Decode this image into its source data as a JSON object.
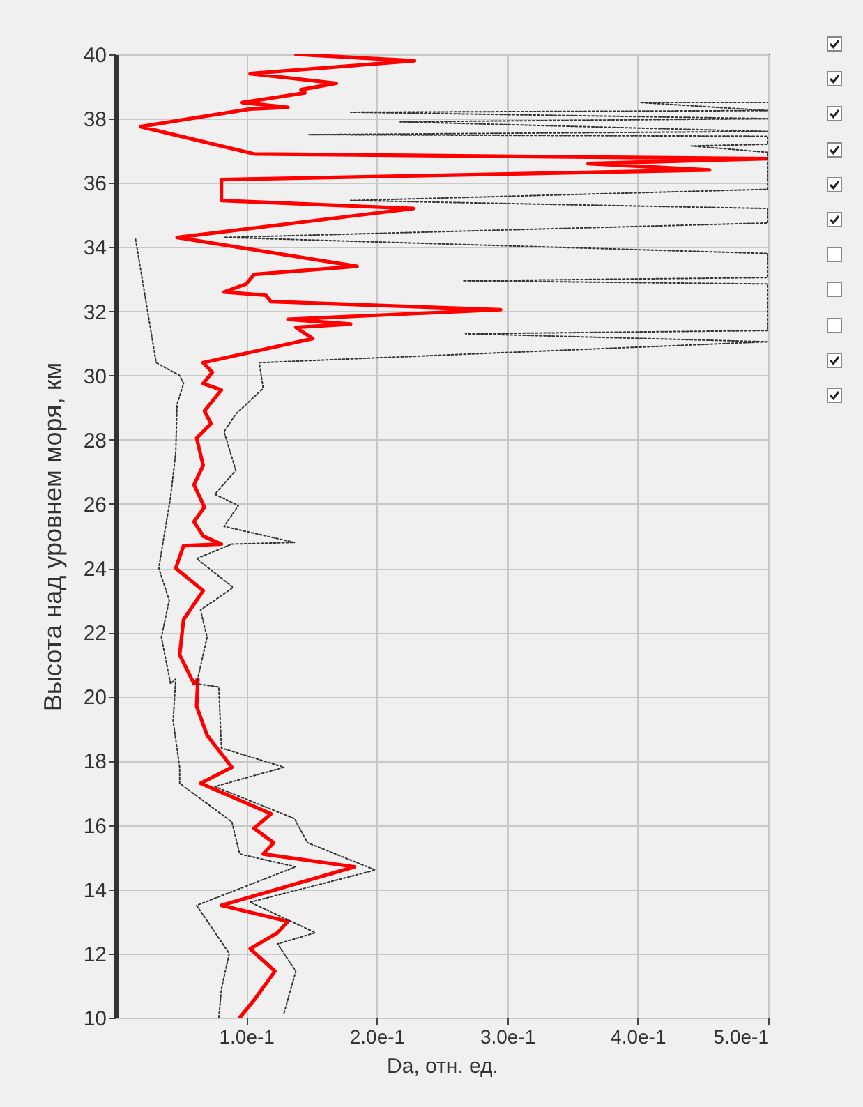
{
  "chart_data": {
    "type": "line",
    "xlabel": "Da, отн. ед.",
    "ylabel": "Высота над уровнем моря, км",
    "xlim": [
      0,
      0.5
    ],
    "xticks": [
      {
        "value": 0.1,
        "label": "1.0e-1"
      },
      {
        "value": 0.2,
        "label": "2.0e-1"
      },
      {
        "value": 0.3,
        "label": "3.0e-1"
      },
      {
        "value": 0.4,
        "label": "4.0e-1"
      },
      {
        "value": 0.5,
        "label": "5.0e-1"
      }
    ],
    "ylim": [
      10,
      40
    ],
    "yticks": [
      10,
      12,
      14,
      16,
      18,
      20,
      22,
      24,
      26,
      28,
      30,
      32,
      34,
      36,
      38,
      40
    ],
    "grid": true,
    "marker": "none",
    "series": [
      {
        "color": "#ff0000",
        "line_style": "solid",
        "x": [
          0.095,
          0.106,
          0.122,
          0.103,
          0.124,
          0.132,
          0.081,
          0.183,
          0.113,
          0.121,
          0.106,
          0.119,
          0.065,
          0.089,
          0.07,
          0.062,
          0.063,
          0.06,
          0.049,
          0.052,
          0.067,
          0.046,
          0.052,
          0.081,
          0.067,
          0.06,
          0.068,
          0.06,
          0.067,
          0.062,
          0.073,
          0.068,
          0.081,
          0.067,
          0.074,
          0.067,
          0.095,
          0.151,
          0.138,
          0.18,
          0.132,
          0.295,
          0.119,
          0.115,
          0.083,
          0.1,
          0.106,
          0.185,
          0.047,
          0.228,
          0.081,
          0.081,
          0.455,
          0.362,
          0.5,
          0.106,
          0.019,
          0.103,
          0.132,
          0.097,
          0.145,
          0.142,
          0.169,
          0.103,
          0.229,
          0.138
        ],
        "values": [
          10.0,
          10.55,
          11.45,
          12.15,
          12.65,
          13.0,
          13.5,
          14.7,
          15.1,
          15.45,
          15.9,
          16.35,
          17.3,
          17.8,
          18.8,
          19.7,
          20.55,
          20.4,
          21.3,
          22.4,
          23.3,
          24.0,
          24.7,
          24.75,
          25.0,
          25.45,
          25.9,
          26.6,
          27.2,
          28.05,
          28.5,
          28.9,
          29.55,
          29.75,
          30.1,
          30.4,
          30.65,
          31.15,
          31.5,
          31.6,
          31.75,
          32.05,
          32.3,
          32.5,
          32.6,
          32.85,
          33.15,
          33.4,
          34.3,
          35.2,
          35.45,
          36.1,
          36.4,
          36.6,
          36.75,
          36.9,
          37.75,
          38.3,
          38.35,
          38.5,
          38.8,
          38.9,
          39.1,
          39.4,
          39.8,
          40.0
        ]
      },
      {
        "color": "#333333",
        "line_style": "dotted",
        "x": [
          0.079,
          0.081,
          0.087,
          0.062,
          0.138,
          0.095,
          0.089,
          0.049,
          0.049,
          0.044,
          0.046,
          0.042,
          0.035,
          0.041,
          0.033,
          0.036,
          0.042,
          0.046,
          0.047,
          0.052,
          0.049,
          0.031,
          0.015
        ],
        "values": [
          10.0,
          10.9,
          12.0,
          13.5,
          14.7,
          15.1,
          16.1,
          17.3,
          17.8,
          19.25,
          20.55,
          20.4,
          21.85,
          23.0,
          24.0,
          24.75,
          26.2,
          27.6,
          29.1,
          29.75,
          30.0,
          30.4,
          34.3
        ]
      },
      {
        "color": "#333333",
        "line_style": "dotted",
        "x": [
          0.129,
          0.138,
          0.124,
          0.153,
          0.103,
          0.199,
          0.147,
          0.137,
          0.076,
          0.129,
          0.081,
          0.079,
          0.062,
          0.07,
          0.065,
          0.09,
          0.062,
          0.089,
          0.137,
          0.083,
          0.094,
          0.076,
          0.092,
          0.083,
          0.092,
          0.113,
          0.11,
          0.5,
          0.268,
          0.5,
          0.5,
          0.266,
          0.5,
          0.5,
          0.083,
          0.5,
          0.5,
          0.18,
          0.5,
          0.5,
          0.441,
          0.5,
          0.5,
          0.148,
          0.5,
          0.218,
          0.5,
          0.18,
          0.5,
          0.402,
          0.5
        ],
        "values": [
          10.15,
          11.45,
          12.3,
          12.65,
          13.6,
          14.6,
          15.45,
          16.2,
          17.2,
          17.8,
          18.4,
          20.3,
          20.4,
          21.85,
          22.7,
          23.4,
          24.3,
          24.75,
          24.8,
          25.3,
          25.95,
          26.3,
          27.05,
          28.25,
          28.8,
          29.6,
          30.4,
          31.05,
          31.3,
          31.4,
          32.85,
          32.95,
          33.05,
          33.8,
          34.3,
          34.75,
          35.2,
          35.45,
          35.8,
          36.95,
          37.15,
          37.2,
          37.45,
          37.5,
          37.6,
          37.9,
          38.0,
          38.2,
          38.25,
          38.5,
          38.5
        ]
      }
    ]
  }
}
